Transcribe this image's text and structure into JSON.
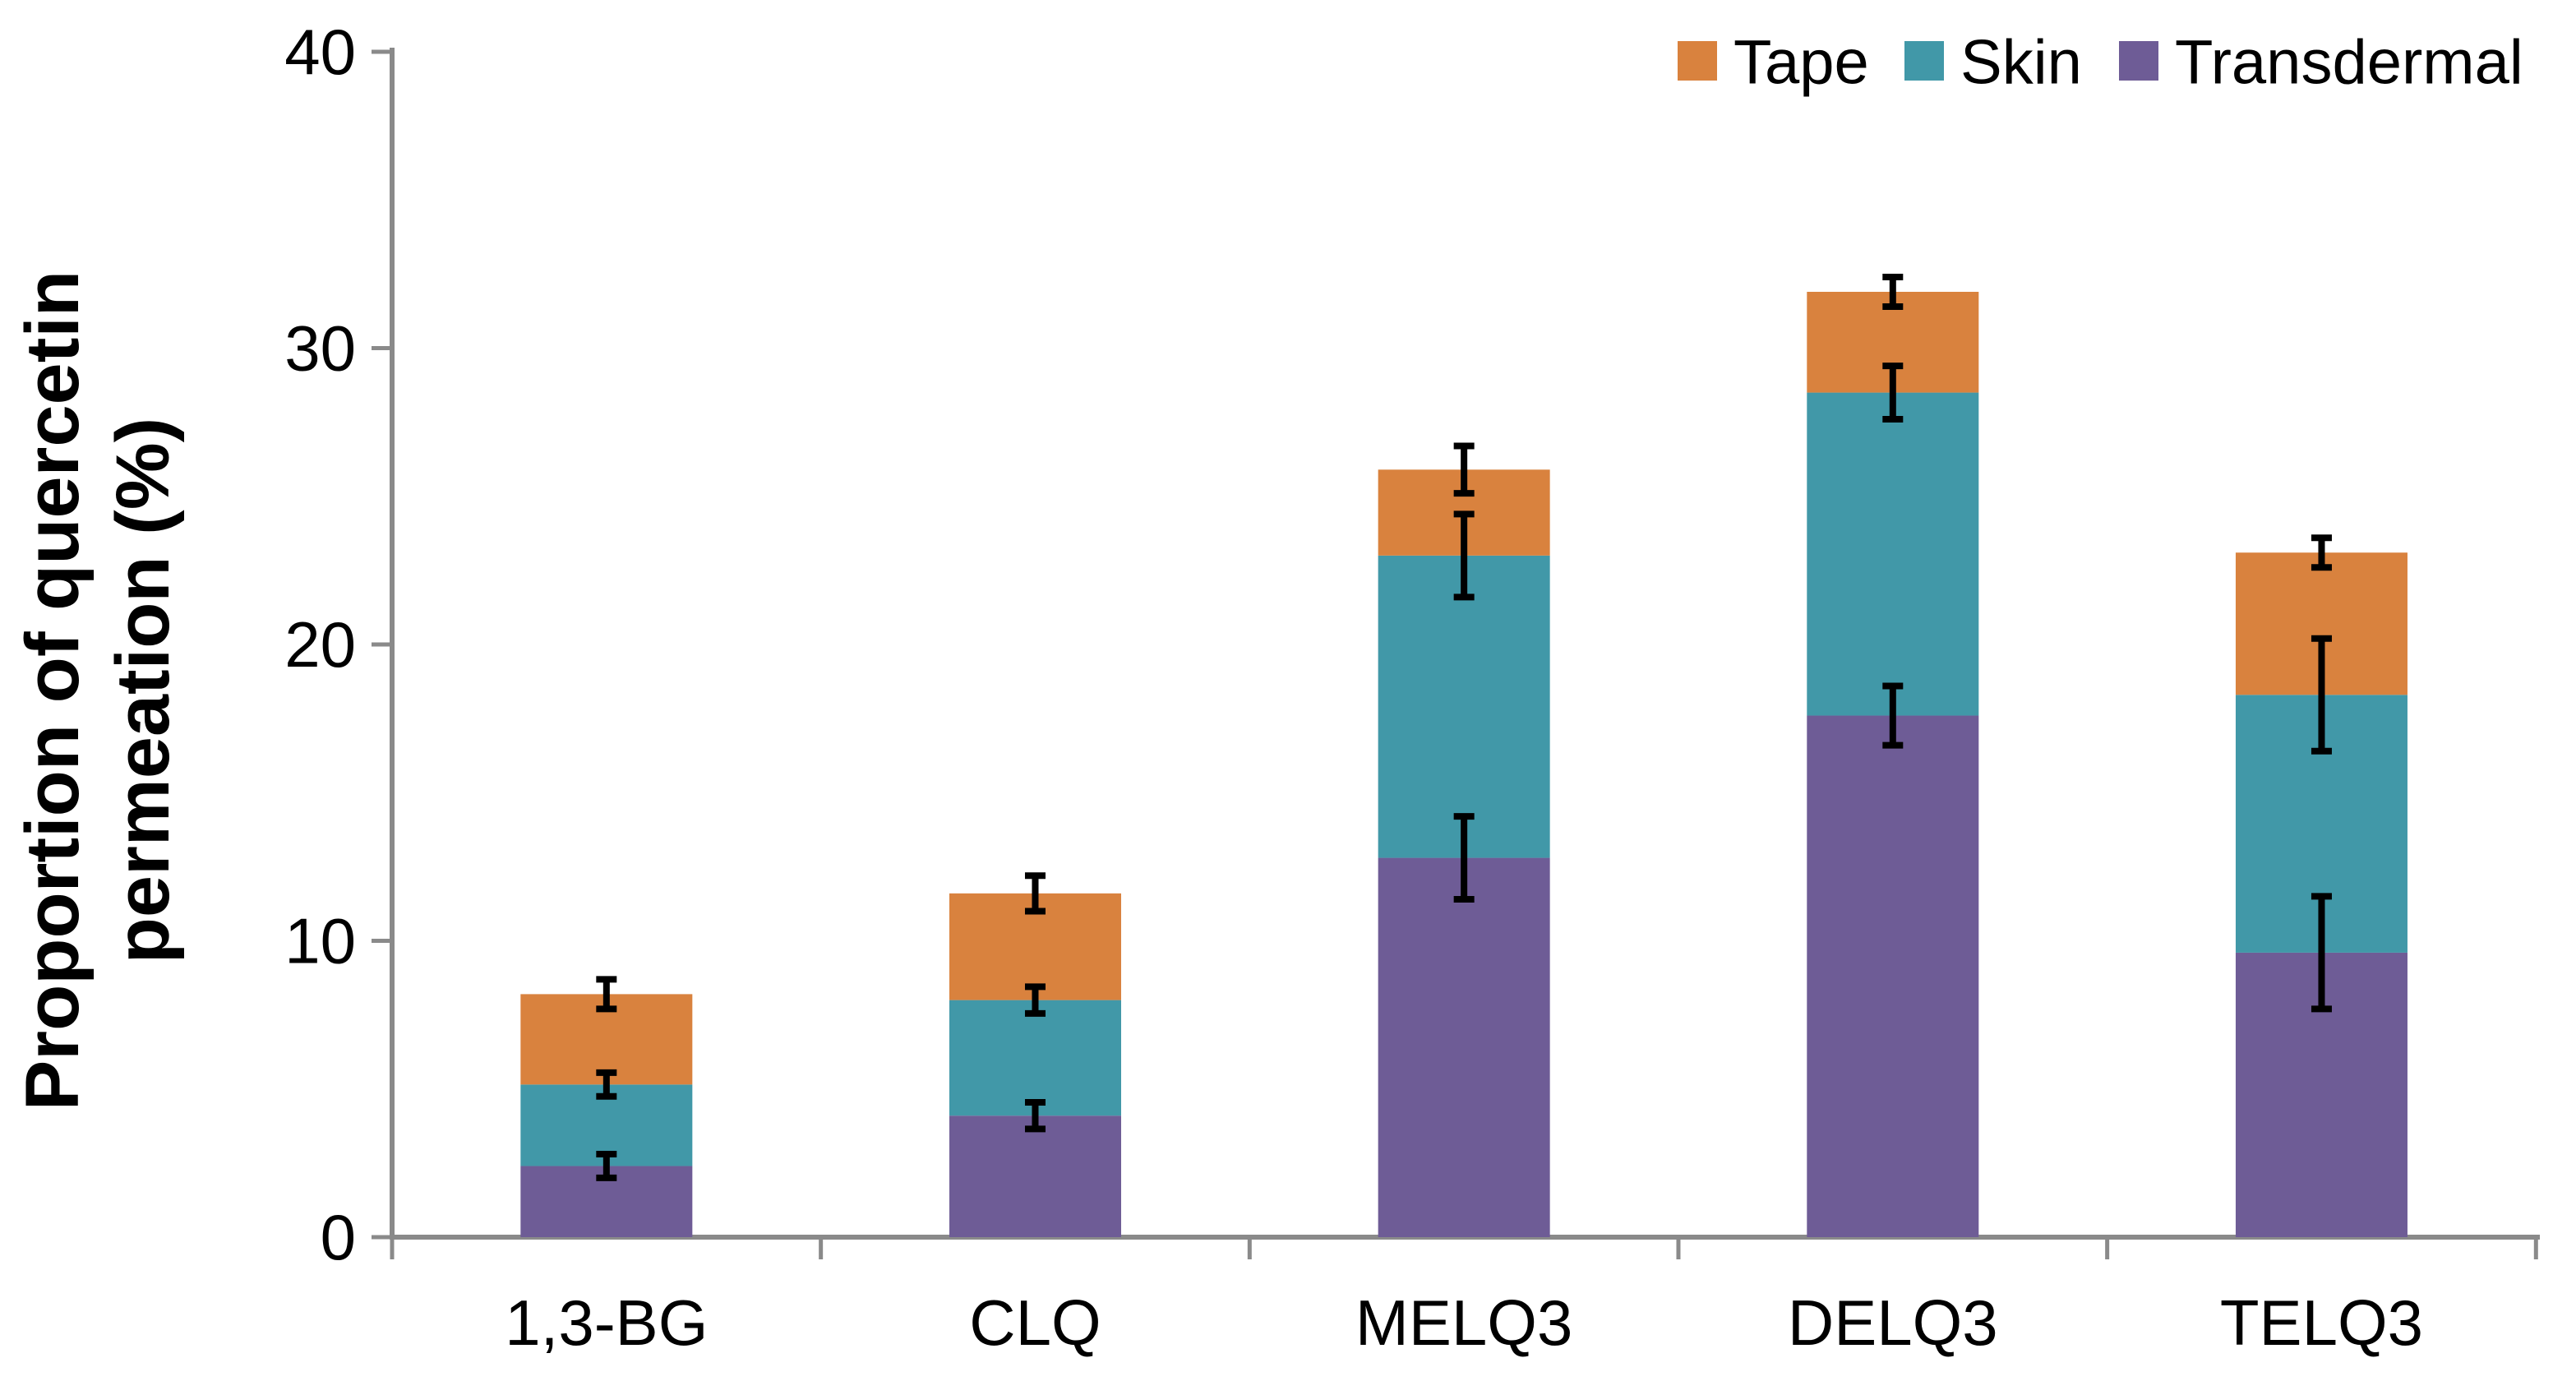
{
  "chart_data": {
    "type": "bar",
    "stacked": true,
    "categories": [
      "1,3-BG",
      "CLQ",
      "MELQ3",
      "DELQ3",
      "TELQ3"
    ],
    "series": [
      {
        "name": "Transdermal",
        "color": "#6E5C96",
        "values": [
          2.4,
          4.1,
          12.8,
          17.6,
          9.6
        ],
        "errors": [
          0.4,
          0.45,
          1.4,
          1.0,
          1.9
        ]
      },
      {
        "name": "Skin",
        "color": "#4198A8",
        "values": [
          2.75,
          3.9,
          10.2,
          10.9,
          8.7
        ],
        "errors": [
          0.4,
          0.45,
          1.4,
          0.9,
          1.9
        ]
      },
      {
        "name": "Tape",
        "color": "#D9823E",
        "values": [
          3.05,
          3.6,
          2.9,
          3.4,
          4.8
        ],
        "errors": [
          0.5,
          0.6,
          0.8,
          0.5,
          0.5
        ]
      }
    ],
    "cumulative_totals": {
      "1,3-BG": [
        2.4,
        5.15,
        8.2
      ],
      "CLQ": [
        4.1,
        8.0,
        11.6
      ],
      "MELQ3": [
        12.8,
        23.0,
        25.9
      ],
      "DELQ3": [
        17.6,
        28.5,
        31.9
      ],
      "TELQ3": [
        9.6,
        18.3,
        23.1
      ]
    },
    "ylabel_line1": "Proportion of quercetin",
    "ylabel_line2": "permeation (%)",
    "y_axis": {
      "min": 0,
      "max": 40,
      "tick_interval": 10,
      "tick_labels": [
        "0",
        "10",
        "20",
        "30",
        "40"
      ]
    },
    "legend": {
      "order": [
        "Tape",
        "Skin",
        "Transdermal"
      ],
      "position": "top-right"
    },
    "error_bars": "black caps at each stacked segment boundary",
    "axis_color": "#8A8A8A",
    "error_bar_color": "#000000",
    "background": "#FFFFFF",
    "grid": "off",
    "title": ""
  }
}
